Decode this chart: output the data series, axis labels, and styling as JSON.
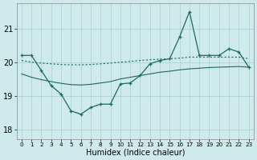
{
  "xlabel": "Humidex (Indice chaleur)",
  "background_color": "#ceeaea",
  "grid_color": "#aacece",
  "line_color": "#1a6b5a",
  "xlim": [
    -0.5,
    23.5
  ],
  "ylim": [
    17.7,
    21.75
  ],
  "yticks": [
    18,
    19,
    20,
    21
  ],
  "xtick_labels": [
    "0",
    "1",
    "2",
    "3",
    "4",
    "5",
    "6",
    "7",
    "8",
    "9",
    "10",
    "11",
    "12",
    "13",
    "14",
    "15",
    "16",
    "17",
    "18",
    "19",
    "20",
    "21",
    "22",
    "23"
  ],
  "y_main": [
    20.2,
    20.2,
    19.75,
    19.3,
    19.05,
    18.55,
    18.45,
    18.65,
    18.75,
    18.75,
    19.35,
    19.38,
    19.6,
    19.95,
    20.05,
    20.1,
    20.75,
    21.5,
    20.2,
    20.2,
    20.2,
    20.4,
    20.3,
    19.85
  ],
  "y_upper": [
    20.05,
    20.0,
    19.97,
    19.95,
    19.93,
    19.92,
    19.92,
    19.93,
    19.95,
    19.97,
    20.0,
    20.02,
    20.05,
    20.07,
    20.09,
    20.1,
    20.12,
    20.15,
    20.15,
    20.15,
    20.15,
    20.15,
    20.15,
    20.1
  ],
  "y_lower": [
    19.65,
    19.55,
    19.48,
    19.42,
    19.37,
    19.33,
    19.32,
    19.34,
    19.38,
    19.42,
    19.5,
    19.55,
    19.6,
    19.65,
    19.7,
    19.73,
    19.77,
    19.8,
    19.82,
    19.84,
    19.85,
    19.86,
    19.87,
    19.85
  ]
}
